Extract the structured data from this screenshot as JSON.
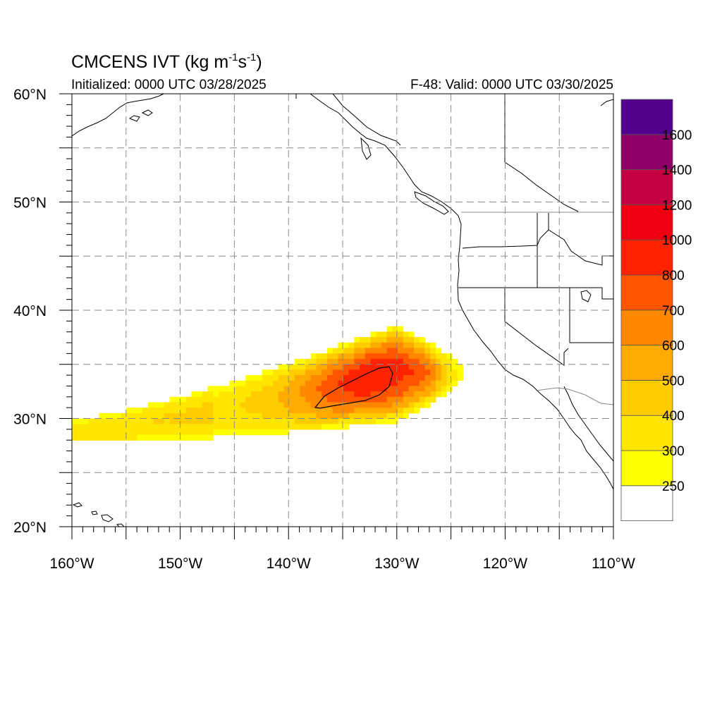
{
  "title": {
    "model": "CMCENS IVT",
    "units_open": "(kg m",
    "exp1": "-1",
    "units_mid": "s",
    "exp2": "-1",
    "units_close": ")"
  },
  "initialized": "Initialized: 0000 UTC 03/28/2025",
  "valid": "F-48: Valid: 0000 UTC 03/30/2025",
  "map": {
    "lon_range": [
      -160,
      -110
    ],
    "lat_range": [
      20,
      60
    ],
    "lon_labels": [
      "160°W",
      "150°W",
      "140°W",
      "130°W",
      "120°W",
      "110°W"
    ],
    "lat_labels": [
      "60°N",
      "50°N",
      "40°N",
      "30°N",
      "20°N"
    ],
    "gridlines": "dashed, every 5 degrees",
    "contour_value": 800
  },
  "colorbar": {
    "colors": [
      "#ffffff",
      "#ffff00",
      "#ffe600",
      "#ffcc00",
      "#ffaa00",
      "#ff8800",
      "#ff5500",
      "#ff2200",
      "#ee0010",
      "#c40040",
      "#8c0068",
      "#54008e"
    ],
    "labels": [
      "250",
      "300",
      "400",
      "500",
      "600",
      "700",
      "800",
      "1000",
      "1200",
      "1400",
      "1600"
    ]
  }
}
